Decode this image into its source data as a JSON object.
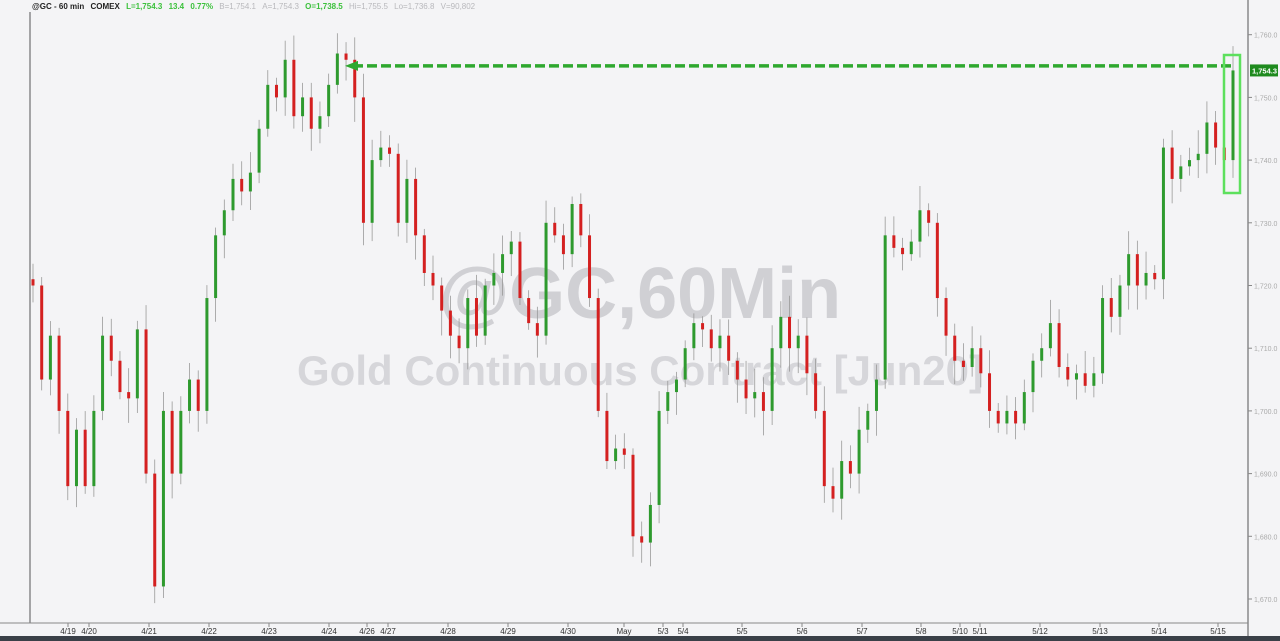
{
  "header": {
    "symbol": "@GC - 60 min",
    "exchange": "COMEX",
    "last": "L=1,754.3",
    "change": "13.4",
    "change_pct": "0.77%",
    "bid": "B=1,754.1",
    "ask": "A=1,754.3",
    "open": "O=1,738.5",
    "high": "Hi=1,755.5",
    "low": "Lo=1,736.8",
    "volume": "V=90,802"
  },
  "watermark": {
    "line1": "@GC,60Min",
    "line2": "Gold Continuous Contract [Jun20]"
  },
  "colors": {
    "up": "#2e9a2e",
    "down": "#d42020",
    "annotation": "#2fa82f",
    "background": "#f4f4f6"
  },
  "chart_data": {
    "type": "candlestick",
    "title": "",
    "ylim": [
      1665,
      1765
    ],
    "yticks": [
      1670,
      1680,
      1690,
      1700,
      1710,
      1720,
      1730,
      1740,
      1750,
      1760
    ],
    "ytick_labels": [
      "1,670.0",
      "1,680.0",
      "1,690.0",
      "1,700.0",
      "1,710.0",
      "1,720.0",
      "1,730.0",
      "1,740.0",
      "1,750.0",
      "1,760.0"
    ],
    "xtick_labels": [
      "4/19",
      "4/20",
      "4/21",
      "4/22",
      "4/23",
      "4/24",
      "4/26",
      "4/27",
      "4/28",
      "4/29",
      "4/30",
      "May",
      "5/3",
      "5/4",
      "5/5",
      "5/6",
      "5/7",
      "5/8",
      "5/10",
      "5/11",
      "5/12",
      "5/13",
      "5/14",
      "5/15"
    ],
    "last_price": 1754.3,
    "last_price_label": "1,754.3",
    "annotation_level": 1755.5,
    "closes": [
      1720,
      1705,
      1712,
      1700,
      1688,
      1697,
      1688,
      1700,
      1712,
      1708,
      1703,
      1702,
      1713,
      1690,
      1672,
      1700,
      1690,
      1700,
      1705,
      1700,
      1718,
      1728,
      1732,
      1737,
      1735,
      1738,
      1745,
      1752,
      1750,
      1756,
      1747,
      1750,
      1745,
      1747,
      1752,
      1757,
      1756,
      1750,
      1730,
      1740,
      1742,
      1741,
      1730,
      1737,
      1728,
      1722,
      1720,
      1716,
      1712,
      1710,
      1718,
      1712,
      1720,
      1722,
      1725,
      1727,
      1718,
      1714,
      1712,
      1730,
      1728,
      1725,
      1733,
      1728,
      1718,
      1700,
      1692,
      1694,
      1693,
      1680,
      1679,
      1685,
      1700,
      1703,
      1705,
      1710,
      1714,
      1713,
      1710,
      1712,
      1708,
      1705,
      1702,
      1703,
      1700,
      1710,
      1715,
      1710,
      1712,
      1706,
      1700,
      1688,
      1686,
      1692,
      1690,
      1697,
      1700,
      1705,
      1728,
      1726,
      1725,
      1727,
      1732,
      1730,
      1718,
      1712,
      1708,
      1707,
      1710,
      1706,
      1700,
      1698,
      1700,
      1698,
      1703,
      1708,
      1710,
      1714,
      1707,
      1705,
      1706,
      1704,
      1706,
      1718,
      1715,
      1720,
      1725,
      1720,
      1722,
      1721,
      1742,
      1737,
      1739,
      1740,
      1741,
      1746,
      1742,
      1740,
      1754.3
    ]
  }
}
